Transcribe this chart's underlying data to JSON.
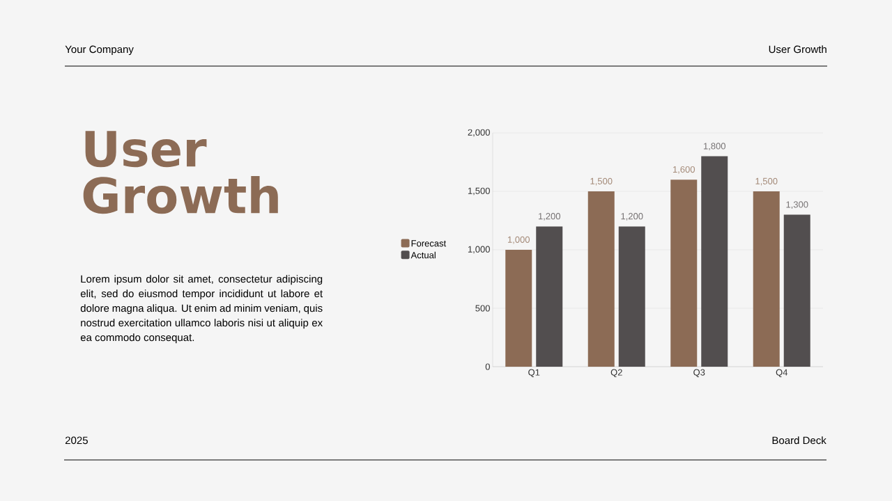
{
  "chart_data": {
    "type": "bar",
    "title": "User Growth",
    "annotations": [
      "Your Company",
      "User Growth",
      "Lorem ipsum dolor sit amet, consectetur adipiscing elit, sed do eiusmod tempor incididunt ut labore et dolore magna aliqua. Ut enim ad minim veniam, quis nostrud exercitation ullamco laboris nisi ut aliquip ex ea commodo consequat.",
      "2025",
      "Board Deck"
    ],
    "categories": [
      "Q1",
      "Q2",
      "Q3",
      "Q4"
    ],
    "series": [
      {
        "name": "Forecast",
        "color": "#8c6b55",
        "values": [
          1000,
          1500,
          1600,
          1500
        ],
        "value_labels": [
          "1,000",
          "1,500",
          "1,600",
          "1,500"
        ]
      },
      {
        "name": "Actual",
        "color": "#524e4f",
        "values": [
          1200,
          1200,
          1800,
          1300
        ],
        "value_labels": [
          "1,200",
          "1,200",
          "1,800",
          "1,300"
        ]
      }
    ],
    "ylim": [
      0,
      2000
    ],
    "yticks": [
      0,
      {
        "value": 500,
        "label": "500"
      },
      {
        "value": 1000,
        "label": "1,000"
      },
      {
        "value": 1500,
        "label": "1,500"
      },
      {
        "value": 2000,
        "label": "2,000"
      }
    ],
    "grid": "y",
    "legend": "left"
  }
}
